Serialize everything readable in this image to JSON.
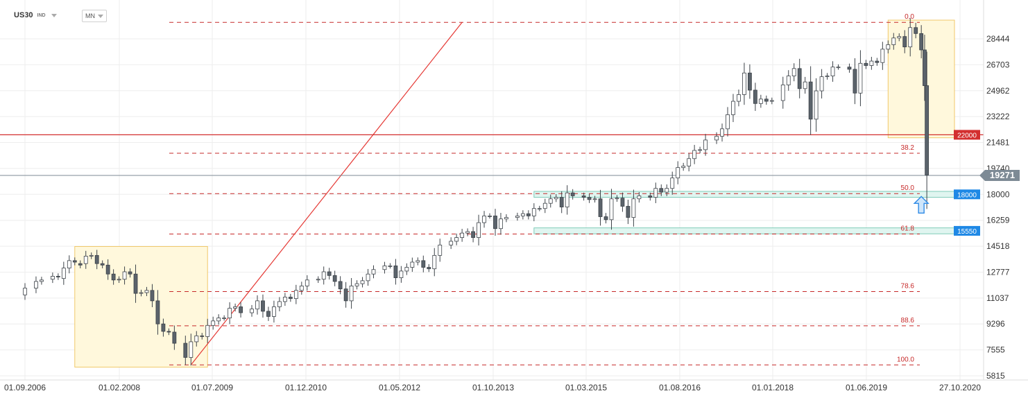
{
  "header": {
    "symbol": "US30",
    "instrument_class": "IND",
    "timeframe": "MN"
  },
  "colors": {
    "bull": "#ffffff",
    "bear": "#5b636b",
    "candle_outline": "#3c4248",
    "fib_line": "#c62828",
    "trend_line": "#e53935",
    "level_22000": "#d32f2f",
    "level_blue": "#1e88e5",
    "current_price": "#7d8a95",
    "highlight_box": "#fff8dc",
    "zone": "#e0f5f0"
  },
  "chart_data": {
    "type": "candlestick",
    "title": "",
    "y_ticks": [
      28444,
      26703,
      24962,
      23222,
      21481,
      19740,
      18000,
      16259,
      14518,
      12777,
      11037,
      9296,
      7555,
      5815
    ],
    "x_ticks": [
      "01.09.2006",
      "01.02.2008",
      "01.07.2009",
      "01.12.2010",
      "01.05.2012",
      "01.10.2013",
      "01.03.2015",
      "01.08.2016",
      "01.01.2018",
      "01.06.2019",
      "27.10.2020"
    ],
    "ylim": [
      5500,
      30000
    ],
    "grid": true,
    "fibonacci": {
      "high": 29550,
      "low": 6547,
      "levels": [
        {
          "label": "0.0",
          "value": 29550
        },
        {
          "label": "38.2",
          "value": 20764
        },
        {
          "label": "50.0",
          "value": 18050
        },
        {
          "label": "61.8",
          "value": 15335
        },
        {
          "label": "78.6",
          "value": 11471
        },
        {
          "label": "88.6",
          "value": 9171
        },
        {
          "label": "100.0",
          "value": 6547
        }
      ]
    },
    "horizontal_levels": [
      {
        "value": 22000,
        "label": "22000",
        "style": "red"
      },
      {
        "value": 18000,
        "label": "18000",
        "style": "blue"
      },
      {
        "value": 15550,
        "label": "15550",
        "style": "blue"
      }
    ],
    "current_price": {
      "value": 19271,
      "label": "19271"
    },
    "trendline": {
      "from": {
        "date": "2009-03",
        "value": 6547
      },
      "to": {
        "date": "2013-04",
        "value": 29550
      }
    },
    "highlight_boxes": [
      {
        "from_date": "2007-06",
        "to_date": "2009-06",
        "top": 14500,
        "bottom": 6400
      },
      {
        "from_date": "2019-09",
        "to_date": "2020-09",
        "top": 29700,
        "bottom": 21800
      }
    ],
    "zones": [
      {
        "from_date": "2014-05",
        "to_date": "2020-09",
        "top": 18200,
        "bottom": 17800
      },
      {
        "from_date": "2014-05",
        "to_date": "2020-09",
        "top": 15750,
        "bottom": 15350
      }
    ],
    "arrow": {
      "date": "2020-03",
      "value": 17300,
      "direction": "up"
    },
    "series": [
      {
        "name": "",
        "points": [
          [
            "2006-09",
            11250,
            11700
          ],
          [
            "2006-11",
            11700,
            12150
          ],
          [
            "2006-12",
            12150,
            12250
          ],
          [
            "2007-02",
            12300,
            12500
          ],
          [
            "2007-03",
            12500,
            12450
          ],
          [
            "2007-04",
            12350,
            13050
          ],
          [
            "2007-05",
            13050,
            13550
          ],
          [
            "2007-06",
            13550,
            13450
          ],
          [
            "2007-07",
            13350,
            13250
          ],
          [
            "2007-08",
            13350,
            13850
          ],
          [
            "2007-09",
            13850,
            13900
          ],
          [
            "2007-10",
            13900,
            13350
          ],
          [
            "2007-11",
            13350,
            13250
          ],
          [
            "2007-12",
            13250,
            12650
          ],
          [
            "2008-01",
            12650,
            12250
          ],
          [
            "2008-02",
            12250,
            12300
          ],
          [
            "2008-03",
            12300,
            12800
          ],
          [
            "2008-04",
            12800,
            12650
          ],
          [
            "2008-05",
            12650,
            11350
          ],
          [
            "2008-06",
            11350,
            11400
          ],
          [
            "2008-07",
            11400,
            11550
          ],
          [
            "2008-08",
            11550,
            10850
          ],
          [
            "2008-09",
            10850,
            9300
          ],
          [
            "2008-10",
            9300,
            8800
          ],
          [
            "2008-11",
            8800,
            8750
          ],
          [
            "2008-12",
            8750,
            8000
          ],
          [
            "2009-02",
            8000,
            7050
          ],
          [
            "2009-03",
            7050,
            8100
          ],
          [
            "2009-04",
            8100,
            8500
          ],
          [
            "2009-05",
            8500,
            8450
          ],
          [
            "2009-06",
            8450,
            9200
          ],
          [
            "2009-07",
            9200,
            9500
          ],
          [
            "2009-08",
            9500,
            9700
          ],
          [
            "2009-09",
            9700,
            9700
          ],
          [
            "2009-10",
            9700,
            10350
          ],
          [
            "2009-11",
            10350,
            10450
          ],
          [
            "2009-12",
            10450,
            10050
          ],
          [
            "2010-02",
            10050,
            10300
          ],
          [
            "2010-03",
            10300,
            10850
          ],
          [
            "2010-04",
            10850,
            10150
          ],
          [
            "2010-05",
            10150,
            9800
          ],
          [
            "2010-06",
            9800,
            10450
          ],
          [
            "2010-07",
            10450,
            10800
          ],
          [
            "2010-08",
            10800,
            11100
          ],
          [
            "2010-09",
            11100,
            11000
          ],
          [
            "2010-10",
            11000,
            11550
          ],
          [
            "2010-11",
            11550,
            11850
          ],
          [
            "2010-12",
            11850,
            12250
          ],
          [
            "2011-02",
            12250,
            12300
          ],
          [
            "2011-03",
            12300,
            12800
          ],
          [
            "2011-04",
            12800,
            12550
          ],
          [
            "2011-05",
            12550,
            12150
          ],
          [
            "2011-06",
            12150,
            11650
          ],
          [
            "2011-07",
            11650,
            10850
          ],
          [
            "2011-08",
            10850,
            11850
          ],
          [
            "2011-09",
            11850,
            12000
          ],
          [
            "2011-10",
            12000,
            12200
          ],
          [
            "2011-11",
            12200,
            12650
          ],
          [
            "2011-12",
            12650,
            12950
          ],
          [
            "2012-02",
            12950,
            13200
          ],
          [
            "2012-03",
            13200,
            13200
          ],
          [
            "2012-04",
            13200,
            12400
          ],
          [
            "2012-05",
            12400,
            12850
          ],
          [
            "2012-06",
            12850,
            13100
          ],
          [
            "2012-07",
            13100,
            13450
          ],
          [
            "2012-08",
            13450,
            13550
          ],
          [
            "2012-09",
            13550,
            13100
          ],
          [
            "2012-10",
            13100,
            13000
          ],
          [
            "2012-11",
            13000,
            13900
          ],
          [
            "2012-12",
            13900,
            14600
          ],
          [
            "2013-02",
            14600,
            14850
          ],
          [
            "2013-03",
            14850,
            15100
          ],
          [
            "2013-04",
            15100,
            15400
          ],
          [
            "2013-05",
            15400,
            15500
          ],
          [
            "2013-06",
            15500,
            15100
          ],
          [
            "2013-07",
            15100,
            16100
          ],
          [
            "2013-08",
            16100,
            16550
          ],
          [
            "2013-09",
            16550,
            16550
          ],
          [
            "2013-10",
            16550,
            15700
          ],
          [
            "2013-11",
            15700,
            16350
          ],
          [
            "2013-12",
            16350,
            16450
          ],
          [
            "2014-02",
            16450,
            16550
          ],
          [
            "2014-03",
            16550,
            16700
          ],
          [
            "2014-04",
            16700,
            16550
          ],
          [
            "2014-05",
            16550,
            17050
          ],
          [
            "2014-06",
            17050,
            17050
          ],
          [
            "2014-07",
            17050,
            17400
          ],
          [
            "2014-08",
            17400,
            17700
          ],
          [
            "2014-09",
            17700,
            17800
          ],
          [
            "2014-10",
            17800,
            17150
          ],
          [
            "2014-11",
            17150,
            18100
          ],
          [
            "2014-12",
            18100,
            17900
          ],
          [
            "2015-02",
            17900,
            17800
          ],
          [
            "2015-03",
            17800,
            17650
          ],
          [
            "2015-04",
            17650,
            17700
          ],
          [
            "2015-05",
            17700,
            16500
          ],
          [
            "2015-06",
            16500,
            16300
          ],
          [
            "2015-07",
            16300,
            17700
          ],
          [
            "2015-08",
            17700,
            17750
          ],
          [
            "2015-09",
            17750,
            17200
          ],
          [
            "2015-10",
            17200,
            16450
          ],
          [
            "2015-11",
            16450,
            17700
          ],
          [
            "2015-12",
            17700,
            17900
          ],
          [
            "2016-02",
            17900,
            17800
          ],
          [
            "2016-03",
            17800,
            18400
          ],
          [
            "2016-04",
            18400,
            18150
          ],
          [
            "2016-05",
            18150,
            18400
          ],
          [
            "2016-06",
            18400,
            19100
          ],
          [
            "2016-07",
            19100,
            19800
          ],
          [
            "2016-08",
            19800,
            19900
          ],
          [
            "2016-09",
            19900,
            20400
          ],
          [
            "2016-10",
            20400,
            20950
          ],
          [
            "2016-11",
            20950,
            21000
          ],
          [
            "2016-12",
            21000,
            21650
          ],
          [
            "2017-02",
            21650,
            21900
          ],
          [
            "2017-03",
            21900,
            22400
          ],
          [
            "2017-04",
            22400,
            23350
          ],
          [
            "2017-05",
            23350,
            24250
          ],
          [
            "2017-06",
            24250,
            24700
          ],
          [
            "2017-07",
            24700,
            26150
          ],
          [
            "2017-08",
            26150,
            25000
          ],
          [
            "2017-09",
            25000,
            24100
          ],
          [
            "2017-10",
            24100,
            24400
          ],
          [
            "2017-11",
            24400,
            24250
          ],
          [
            "2017-12",
            24250,
            24300
          ],
          [
            "2018-02",
            24300,
            25350
          ],
          [
            "2018-03",
            25350,
            25950
          ],
          [
            "2018-04",
            25950,
            26450
          ],
          [
            "2018-05",
            26450,
            25100
          ],
          [
            "2018-06",
            25100,
            25550
          ],
          [
            "2018-07",
            25550,
            23050
          ],
          [
            "2018-08",
            23050,
            24950
          ],
          [
            "2018-09",
            24950,
            25900
          ],
          [
            "2018-10",
            25900,
            25950
          ],
          [
            "2018-11",
            25950,
            26550
          ],
          [
            "2018-12",
            26550,
            26550
          ],
          [
            "2019-02",
            26550,
            26400
          ],
          [
            "2019-03",
            26400,
            24800
          ],
          [
            "2019-04",
            24800,
            26800
          ],
          [
            "2019-05",
            26800,
            26650
          ],
          [
            "2019-06",
            26650,
            26950
          ],
          [
            "2019-07",
            26950,
            26850
          ],
          [
            "2019-08",
            26850,
            27750
          ],
          [
            "2019-09",
            27750,
            28050
          ],
          [
            "2019-10",
            28050,
            28500
          ],
          [
            "2019-11",
            28500,
            28600
          ],
          [
            "2019-12",
            28600,
            27900
          ],
          [
            "2020-01",
            27900,
            29200
          ],
          [
            "2020-02",
            29200,
            28800
          ],
          [
            "2020-03",
            28800,
            27700
          ],
          [
            "2020-03b",
            27700,
            25300
          ],
          [
            "2020-04",
            25300,
            19300
          ]
        ]
      }
    ]
  }
}
